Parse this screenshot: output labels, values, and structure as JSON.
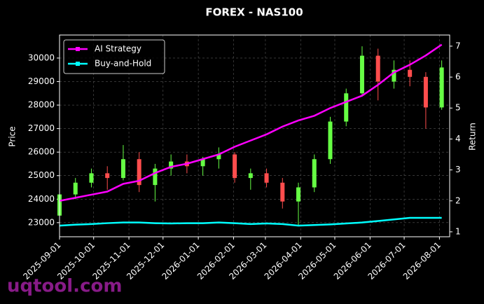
{
  "chart_data": {
    "type": "candlestick",
    "title": "FOREX - NAS100",
    "ylabel": "Price",
    "y2label": "Return",
    "watermark": "uqtool.com",
    "x": [
      "2025-09-01",
      "2025-09-15",
      "2025-09-29",
      "2025-10-13",
      "2025-10-27",
      "2025-11-10",
      "2025-11-24",
      "2025-12-08",
      "2025-12-22",
      "2026-01-05",
      "2026-01-19",
      "2026-02-02",
      "2026-02-16",
      "2026-03-02",
      "2026-03-16",
      "2026-03-30",
      "2026-04-13",
      "2026-04-27",
      "2026-05-11",
      "2026-05-25",
      "2026-06-08",
      "2026-06-22",
      "2026-07-06",
      "2026-07-20",
      "2026-08-03"
    ],
    "open": [
      23300,
      24200,
      24700,
      25100,
      24900,
      25700,
      24600,
      25300,
      25600,
      25400,
      25700,
      25900,
      24900,
      25100,
      24700,
      23900,
      24500,
      25700,
      27300,
      28500,
      30100,
      29000,
      29500,
      29200,
      27900
    ],
    "high": [
      24300,
      24900,
      25300,
      25400,
      26300,
      26000,
      25500,
      25900,
      25900,
      25800,
      26200,
      26000,
      25300,
      25300,
      24900,
      24700,
      25900,
      27500,
      28700,
      30500,
      30400,
      29900,
      29900,
      29400,
      29900
    ],
    "low": [
      23200,
      24000,
      24500,
      24400,
      24800,
      24300,
      23900,
      25000,
      25100,
      25000,
      25300,
      24700,
      24400,
      24500,
      23600,
      22900,
      24300,
      25500,
      27100,
      28400,
      28200,
      28700,
      28800,
      27000,
      27800
    ],
    "close": [
      24200,
      24700,
      25100,
      24900,
      25700,
      24600,
      25300,
      25600,
      25400,
      25700,
      25900,
      24900,
      25100,
      24700,
      23900,
      24500,
      25700,
      27300,
      28500,
      30100,
      29000,
      29500,
      29200,
      27900,
      29600
    ],
    "up_color": "#66ff44",
    "down_color": "#ff4d4d",
    "series": [
      {
        "name": "AI Strategy",
        "color": "#ff00ff",
        "axis": "y2",
        "values": [
          2.0,
          2.1,
          2.2,
          2.3,
          2.55,
          2.65,
          2.9,
          3.1,
          3.2,
          3.35,
          3.5,
          3.75,
          3.95,
          4.15,
          4.4,
          4.6,
          4.75,
          5.0,
          5.2,
          5.4,
          5.75,
          6.15,
          6.4,
          6.7,
          7.05
        ]
      },
      {
        "name": "Buy-and-Hold",
        "color": "#00ffff",
        "axis": "y2",
        "values": [
          1.2,
          1.23,
          1.25,
          1.28,
          1.3,
          1.3,
          1.28,
          1.27,
          1.28,
          1.28,
          1.3,
          1.28,
          1.25,
          1.27,
          1.25,
          1.2,
          1.22,
          1.24,
          1.27,
          1.3,
          1.35,
          1.4,
          1.45,
          1.45,
          1.45
        ]
      }
    ],
    "xlim": [
      "2025-09-01",
      "2026-08-10"
    ],
    "xticks": [
      "2025-09-01",
      "2025-10-01",
      "2025-11-01",
      "2025-12-01",
      "2026-01-01",
      "2026-02-01",
      "2026-03-01",
      "2026-04-01",
      "2026-05-01",
      "2026-06-01",
      "2026-07-01",
      "2026-08-01"
    ],
    "ylim": [
      22400,
      30980
    ],
    "yticks": [
      23000,
      24000,
      25000,
      26000,
      27000,
      28000,
      29000,
      30000
    ],
    "y2lim": [
      0.84,
      7.36
    ],
    "y2ticks": [
      1,
      2,
      3,
      4,
      5,
      6,
      7
    ],
    "grid": true,
    "legend": "upper left"
  }
}
